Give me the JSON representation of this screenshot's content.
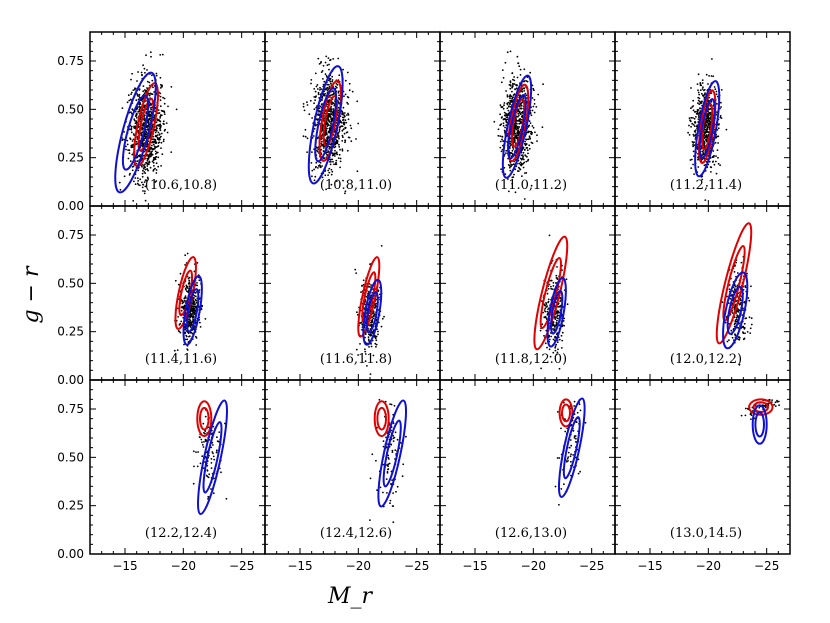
{
  "chart_data": {
    "type": "scatter",
    "xlabel": "M_r",
    "ylabel": "g − r",
    "xlim": [
      -12,
      -27
    ],
    "ylim": [
      0.0,
      0.9
    ],
    "x_ticks": [
      -15,
      -20,
      -25
    ],
    "y_ticks": [
      0.0,
      0.25,
      0.5,
      0.75
    ],
    "x_tick_labels": [
      "−15",
      "−20",
      "−25"
    ],
    "y_tick_labels": [
      "0.00",
      "0.25",
      "0.50",
      "0.75"
    ],
    "grid": false,
    "panel_layout": "3 rows × 4 columns",
    "colors": {
      "points": "#000000",
      "red_contours": "#e00000",
      "blue_contours": "#1010d0"
    },
    "panels": [
      {
        "label": "(10.6,10.8)",
        "mr": -16.8,
        "gr": 0.4,
        "n": 900,
        "sx": 0.75,
        "sy": 0.13,
        "red": {
          "cx": -16.8,
          "cy": 0.42,
          "rx": 1.4,
          "ry": 0.22,
          "rot": 12
        },
        "blue": {
          "cx": -15.9,
          "cy": 0.38,
          "rx": 2.2,
          "ry": 0.32,
          "rot": 15
        }
      },
      {
        "label": "(10.8,11.0)",
        "mr": -17.5,
        "gr": 0.43,
        "n": 850,
        "sx": 0.75,
        "sy": 0.13,
        "red": {
          "cx": -17.6,
          "cy": 0.44,
          "rx": 1.4,
          "ry": 0.21,
          "rot": 10
        },
        "blue": {
          "cx": -17.2,
          "cy": 0.42,
          "rx": 2.0,
          "ry": 0.31,
          "rot": 12
        }
      },
      {
        "label": "(11.0,11.2)",
        "mr": -18.6,
        "gr": 0.42,
        "n": 800,
        "sx": 0.65,
        "sy": 0.12,
        "red": {
          "cx": -18.7,
          "cy": 0.43,
          "rx": 1.3,
          "ry": 0.2,
          "rot": 10
        },
        "blue": {
          "cx": -18.6,
          "cy": 0.41,
          "rx": 1.6,
          "ry": 0.27,
          "rot": 12
        }
      },
      {
        "label": "(11.2,11.4)",
        "mr": -19.8,
        "gr": 0.4,
        "n": 700,
        "sx": 0.55,
        "sy": 0.11,
        "red": {
          "cx": -19.9,
          "cy": 0.41,
          "rx": 1.1,
          "ry": 0.19,
          "rot": 8
        },
        "blue": {
          "cx": -19.9,
          "cy": 0.4,
          "rx": 1.5,
          "ry": 0.25,
          "rot": 10
        }
      },
      {
        "label": "(11.4,11.6)",
        "mr": -20.6,
        "gr": 0.37,
        "n": 450,
        "sx": 0.45,
        "sy": 0.09,
        "red": {
          "cx": -20.2,
          "cy": 0.45,
          "rx": 1.2,
          "ry": 0.19,
          "rot": 12
        },
        "blue": {
          "cx": -20.8,
          "cy": 0.36,
          "rx": 1.2,
          "ry": 0.18,
          "rot": 10
        }
      },
      {
        "label": "(11.6,11.8)",
        "mr": -21.0,
        "gr": 0.35,
        "n": 350,
        "sx": 0.45,
        "sy": 0.09,
        "red": {
          "cx": -20.9,
          "cy": 0.43,
          "rx": 1.1,
          "ry": 0.21,
          "rot": 12
        },
        "blue": {
          "cx": -21.2,
          "cy": 0.35,
          "rx": 1.2,
          "ry": 0.17,
          "rot": 10
        }
      },
      {
        "label": "(11.8,12.0)",
        "mr": -21.8,
        "gr": 0.36,
        "n": 300,
        "sx": 0.45,
        "sy": 0.1,
        "red": {
          "cx": -21.5,
          "cy": 0.45,
          "rx": 1.5,
          "ry": 0.3,
          "rot": 14
        },
        "blue": {
          "cx": -22.0,
          "cy": 0.35,
          "rx": 1.2,
          "ry": 0.18,
          "rot": 10
        }
      },
      {
        "label": "(12.0,12.2)",
        "mr": -22.5,
        "gr": 0.38,
        "n": 250,
        "sx": 0.45,
        "sy": 0.1,
        "red": {
          "cx": -22.2,
          "cy": 0.5,
          "rx": 1.5,
          "ry": 0.32,
          "rot": 14
        },
        "blue": {
          "cx": -22.3,
          "cy": 0.36,
          "rx": 1.6,
          "ry": 0.2,
          "rot": 12
        }
      },
      {
        "label": "(12.2,12.4)",
        "mr": -22.3,
        "gr": 0.52,
        "n": 120,
        "sx": 0.5,
        "sy": 0.13,
        "red": {
          "cx": -21.8,
          "cy": 0.7,
          "rx": 1.2,
          "ry": 0.09,
          "rot": 0
        },
        "blue": {
          "cx": -22.5,
          "cy": 0.5,
          "rx": 1.4,
          "ry": 0.3,
          "rot": 12
        }
      },
      {
        "label": "(12.4,12.6)",
        "mr": -22.7,
        "gr": 0.52,
        "n": 110,
        "sx": 0.5,
        "sy": 0.13,
        "red": {
          "cx": -22.0,
          "cy": 0.7,
          "rx": 1.2,
          "ry": 0.09,
          "rot": 0
        },
        "blue": {
          "cx": -22.9,
          "cy": 0.52,
          "rx": 1.4,
          "ry": 0.28,
          "rot": 12
        }
      },
      {
        "label": "(12.6,13.0)",
        "mr": -23.2,
        "gr": 0.58,
        "n": 90,
        "sx": 0.5,
        "sy": 0.12,
        "red": {
          "cx": -22.8,
          "cy": 0.73,
          "rx": 1.1,
          "ry": 0.07,
          "rot": 0
        },
        "blue": {
          "cx": -23.3,
          "cy": 0.55,
          "rx": 1.3,
          "ry": 0.26,
          "rot": 12
        }
      },
      {
        "label": "(13.0,14.5)",
        "mr": -24.5,
        "gr": 0.76,
        "n": 60,
        "sx": 0.9,
        "sy": 0.02,
        "red": {
          "cx": -24.5,
          "cy": 0.76,
          "rx": 2.0,
          "ry": 0.04,
          "rot": 0
        },
        "blue": {
          "cx": -24.4,
          "cy": 0.67,
          "rx": 1.2,
          "ry": 0.1,
          "rot": 0
        }
      }
    ]
  }
}
